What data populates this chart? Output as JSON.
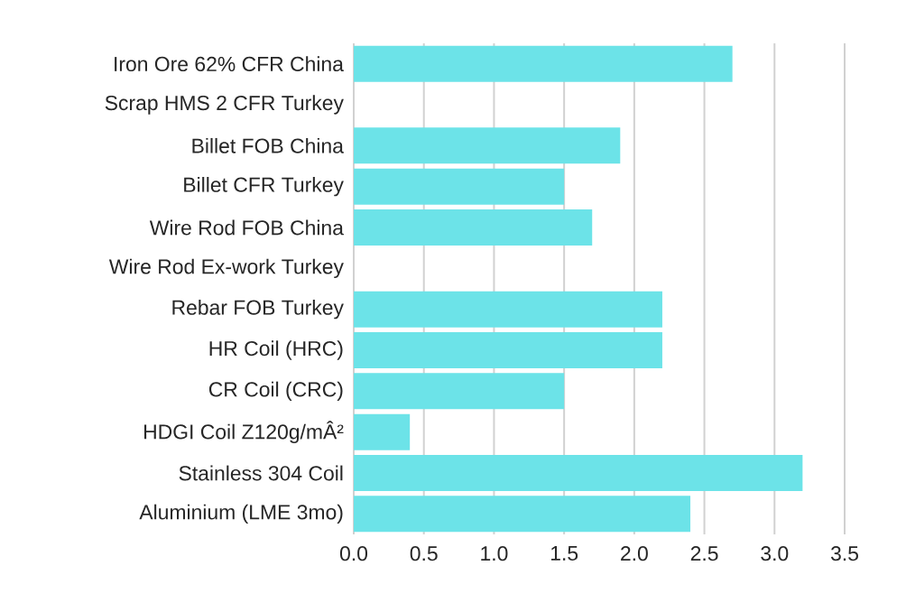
{
  "chart_data": {
    "type": "bar",
    "orientation": "horizontal",
    "categories": [
      "Iron Ore 62% CFR China",
      "Scrap HMS 2 CFR Turkey",
      "Billet FOB China",
      "Billet CFR Turkey",
      "Wire Rod FOB China",
      "Wire Rod Ex-work Turkey",
      "Rebar FOB Turkey",
      "HR Coil (HRC)",
      "CR Coil (CRC)",
      "HDGI Coil Z120g/mÂ²",
      "Stainless 304 Coil",
      "Aluminium (LME 3mo)"
    ],
    "values": [
      2.7,
      0,
      1.9,
      1.5,
      1.7,
      0,
      2.2,
      2.2,
      1.5,
      0.4,
      3.2,
      2.4
    ],
    "color": "#6ce3e8",
    "xlim": [
      0,
      3.5
    ],
    "xticks": [
      {
        "value": 0,
        "label": "0.0"
      },
      0.5,
      {
        "value": 1,
        "label": "1.0"
      },
      1.5,
      {
        "value": 2,
        "label": "2.0"
      },
      2.5,
      {
        "value": 3,
        "label": "3.0"
      },
      3.5
    ],
    "grid": "x"
  }
}
